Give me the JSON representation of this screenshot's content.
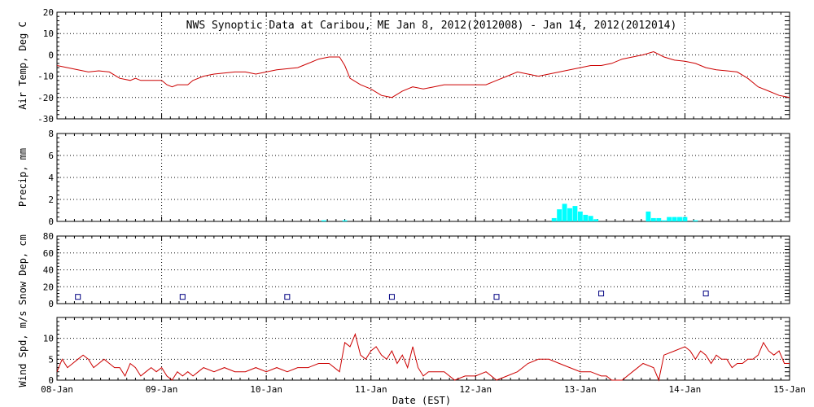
{
  "chart_data": {
    "type": "multi-panel",
    "title": "NWS Synoptic Data at Caribou, ME   Jan  8, 2012(2012008) - Jan 14, 2012(2012014)",
    "xlabel": "Date (EST)",
    "x_ticks": [
      "08-Jan",
      "09-Jan",
      "10-Jan",
      "11-Jan",
      "12-Jan",
      "13-Jan",
      "14-Jan",
      "15-Jan"
    ],
    "x_range_days": [
      0,
      7
    ],
    "grid": true,
    "colors": {
      "temp": "#cc0000",
      "precip": "#00ffff",
      "snow": "#000080",
      "wind": "#cc0000",
      "grid": "#000000"
    },
    "panels": [
      {
        "key": "temp",
        "type": "line",
        "ylabel": "Air Temp, Deg C",
        "ylim": [
          -30,
          20
        ],
        "yticks": [
          -30,
          -20,
          -10,
          0,
          10,
          20
        ],
        "series": [
          {
            "x": [
              0,
              0.1,
              0.2,
              0.3,
              0.4,
              0.5,
              0.6,
              0.7,
              0.75,
              0.8,
              0.9,
              1.0,
              1.05,
              1.1,
              1.15,
              1.25,
              1.3,
              1.4,
              1.5,
              1.7,
              1.8,
              1.9,
              2.0,
              2.1,
              2.3,
              2.4,
              2.5,
              2.6,
              2.7,
              2.75,
              2.8,
              2.9,
              3.0,
              3.1,
              3.2,
              3.3,
              3.4,
              3.5,
              3.6,
              3.7,
              3.8,
              3.9,
              4.0,
              4.1,
              4.2,
              4.3,
              4.4,
              4.5,
              4.6,
              4.7,
              4.8,
              4.9,
              5.0,
              5.1,
              5.2,
              5.3,
              5.4,
              5.5,
              5.6,
              5.7,
              5.8,
              5.9,
              6.0,
              6.1,
              6.2,
              6.3,
              6.4,
              6.5,
              6.6,
              6.7,
              6.8,
              6.9,
              7.0
            ],
            "y": [
              -5,
              -6,
              -7,
              -8,
              -7.5,
              -8,
              -11,
              -12,
              -11,
              -12,
              -12,
              -12,
              -14,
              -15,
              -14,
              -14,
              -12,
              -10,
              -9,
              -8,
              -8,
              -9,
              -8,
              -7,
              -6,
              -4,
              -2,
              -1,
              -1,
              -5,
              -11,
              -14,
              -16,
              -19,
              -20,
              -17,
              -15,
              -16,
              -15,
              -14,
              -14,
              -14,
              -14,
              -14,
              -12,
              -10,
              -8,
              -9,
              -10,
              -9,
              -8,
              -7,
              -6,
              -5,
              -5,
              -4,
              -2,
              -1,
              0,
              1.5,
              -1,
              -2.5,
              -3,
              -4,
              -6,
              -7,
              -7.5,
              -8,
              -11,
              -15,
              -17,
              -19,
              -20
            ]
          }
        ]
      },
      {
        "key": "precip",
        "type": "bar",
        "ylabel": "Precip, mm",
        "ylim": [
          0,
          8
        ],
        "yticks": [
          0,
          2,
          4,
          6,
          8
        ],
        "series": [
          {
            "x": [
              2.55,
              2.75,
              4.75,
              4.8,
              4.85,
              4.9,
              4.95,
              5.0,
              5.05,
              5.1,
              5.15,
              5.65,
              5.7,
              5.75,
              5.8,
              5.85,
              5.9,
              5.95,
              6.0,
              6.1
            ],
            "y": [
              0.1,
              0.1,
              0.3,
              1.1,
              1.6,
              1.2,
              1.4,
              0.9,
              0.6,
              0.5,
              0.2,
              0.9,
              0.3,
              0.3,
              0.1,
              0.4,
              0.4,
              0.4,
              0.4,
              0.1
            ]
          }
        ]
      },
      {
        "key": "snow",
        "type": "scatter",
        "ylabel": "Snow Dep, cm",
        "ylim": [
          0,
          80
        ],
        "yticks": [
          0,
          20,
          40,
          60,
          80
        ],
        "series": [
          {
            "x": [
              0.2,
              1.2,
              2.2,
              3.2,
              4.2,
              5.2,
              6.2
            ],
            "y": [
              8,
              8,
              8,
              8,
              8,
              12,
              12
            ]
          }
        ]
      },
      {
        "key": "wind",
        "type": "line",
        "ylabel": "Wind Spd, m/s",
        "ylim": [
          0,
          15
        ],
        "yticks": [
          0,
          5,
          10
        ],
        "series": [
          {
            "x": [
              0,
              0.05,
              0.1,
              0.15,
              0.2,
              0.25,
              0.3,
              0.35,
              0.4,
              0.45,
              0.5,
              0.55,
              0.6,
              0.65,
              0.7,
              0.75,
              0.8,
              0.85,
              0.9,
              0.95,
              1.0,
              1.05,
              1.1,
              1.15,
              1.2,
              1.25,
              1.3,
              1.35,
              1.4,
              1.5,
              1.6,
              1.7,
              1.8,
              1.9,
              2.0,
              2.1,
              2.2,
              2.3,
              2.4,
              2.5,
              2.6,
              2.7,
              2.75,
              2.8,
              2.85,
              2.9,
              2.95,
              3.0,
              3.05,
              3.1,
              3.15,
              3.2,
              3.25,
              3.3,
              3.35,
              3.4,
              3.45,
              3.5,
              3.55,
              3.6,
              3.7,
              3.8,
              3.9,
              4.0,
              4.1,
              4.2,
              4.3,
              4.4,
              4.5,
              4.6,
              4.7,
              4.8,
              4.9,
              5.0,
              5.1,
              5.2,
              5.25,
              5.3,
              5.4,
              5.5,
              5.6,
              5.7,
              5.75,
              5.8,
              5.9,
              6.0,
              6.05,
              6.1,
              6.15,
              6.2,
              6.25,
              6.3,
              6.35,
              6.4,
              6.45,
              6.5,
              6.55,
              6.6,
              6.65,
              6.7,
              6.75,
              6.8,
              6.85,
              6.9,
              6.95,
              7.0
            ],
            "y": [
              2,
              5,
              3,
              4,
              5,
              6,
              5,
              3,
              4,
              5,
              4,
              3,
              3,
              1,
              4,
              3,
              1,
              2,
              3,
              2,
              3,
              1,
              0,
              2,
              1,
              2,
              1,
              2,
              3,
              2,
              3,
              2,
              2,
              3,
              2,
              3,
              2,
              3,
              3,
              4,
              4,
              2,
              9,
              8,
              11,
              6,
              5,
              7,
              8,
              6,
              5,
              7,
              4,
              6,
              3,
              8,
              3,
              1,
              2,
              2,
              2,
              0,
              1,
              1,
              2,
              0,
              1,
              2,
              4,
              5,
              5,
              4,
              3,
              2,
              2,
              1,
              1,
              0,
              0,
              2,
              4,
              3,
              0,
              6,
              7,
              8,
              7,
              5,
              7,
              6,
              4,
              6,
              5,
              5,
              3,
              4,
              4,
              5,
              5,
              6,
              9,
              7,
              6,
              7,
              4,
              4
            ]
          }
        ]
      }
    ]
  }
}
